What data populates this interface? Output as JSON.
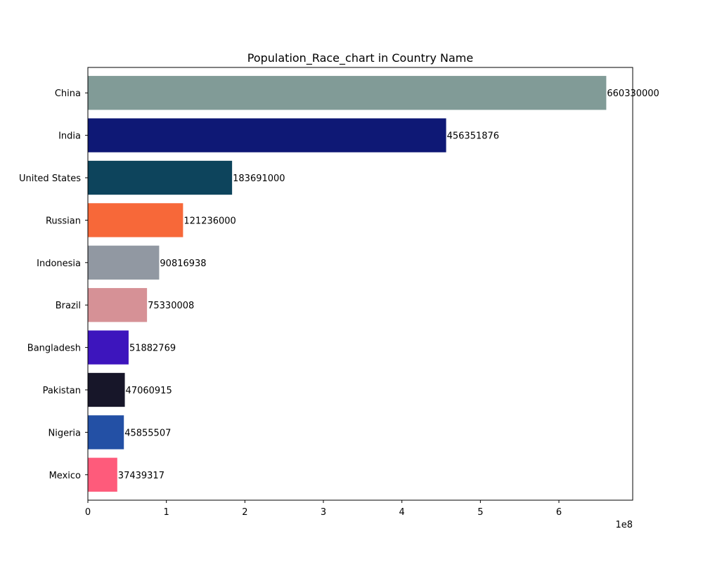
{
  "chart_data": {
    "type": "bar",
    "orientation": "horizontal",
    "title": "Population_Race_chart in Country Name",
    "xlabel": "",
    "ylabel": "",
    "x_offset_label": "1e8",
    "x_scale": 100000000,
    "xlim": [
      0,
      694000000
    ],
    "x_ticks": [
      0,
      1,
      2,
      3,
      4,
      5,
      6
    ],
    "grid": false,
    "legend": "none",
    "categories": [
      "China",
      "India",
      "United States",
      "Russian",
      "Indonesia",
      "Brazil",
      "Bangladesh",
      "Pakistan",
      "Nigeria",
      "Mexico"
    ],
    "values": [
      660330000,
      456351876,
      183691000,
      121236000,
      90816938,
      75330008,
      51882769,
      47060915,
      45855507,
      37439317
    ],
    "value_labels": [
      "660330000",
      "456351876",
      "183691000",
      "121236000",
      "90816938",
      "75330008",
      "51882769",
      "47060915",
      "45855507",
      "37439317"
    ],
    "colors": [
      "#819b97",
      "#0e1875",
      "#0d445c",
      "#f76839",
      "#9198a2",
      "#d69196",
      "#3d15bd",
      "#171629",
      "#2350a5",
      "#fe5b7b"
    ]
  }
}
